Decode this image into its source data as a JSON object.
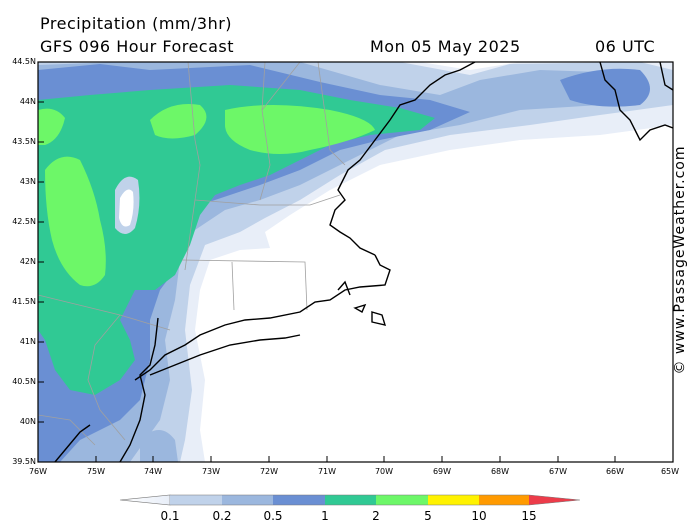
{
  "header": {
    "title": "Precipitation (mm/3hr)",
    "subtitle": "GFS 096 Hour Forecast",
    "datetime": "Mon 05 May 2025",
    "utc": "06 UTC"
  },
  "axes": {
    "lat_labels": [
      "44.5N",
      "44N",
      "43.5N",
      "43N",
      "42.5N",
      "42N",
      "41.5N",
      "41N",
      "40.5N",
      "40N",
      "39.5N"
    ],
    "lon_labels": [
      "76W",
      "75W",
      "74W",
      "73W",
      "72W",
      "71W",
      "70W",
      "69W",
      "68W",
      "67W",
      "66W",
      "65W"
    ]
  },
  "credit": "© www.PassageWeather.com",
  "legend": {
    "levels": [
      "0.1",
      "0.2",
      "0.5",
      "1",
      "2",
      "5",
      "10",
      "15"
    ],
    "colors": [
      "#e8eef8",
      "#c0d2ea",
      "#9bb7de",
      "#6a8fd3",
      "#30c994",
      "#6df768",
      "#fff200",
      "#ff9a00",
      "#ec3c4a"
    ]
  }
}
